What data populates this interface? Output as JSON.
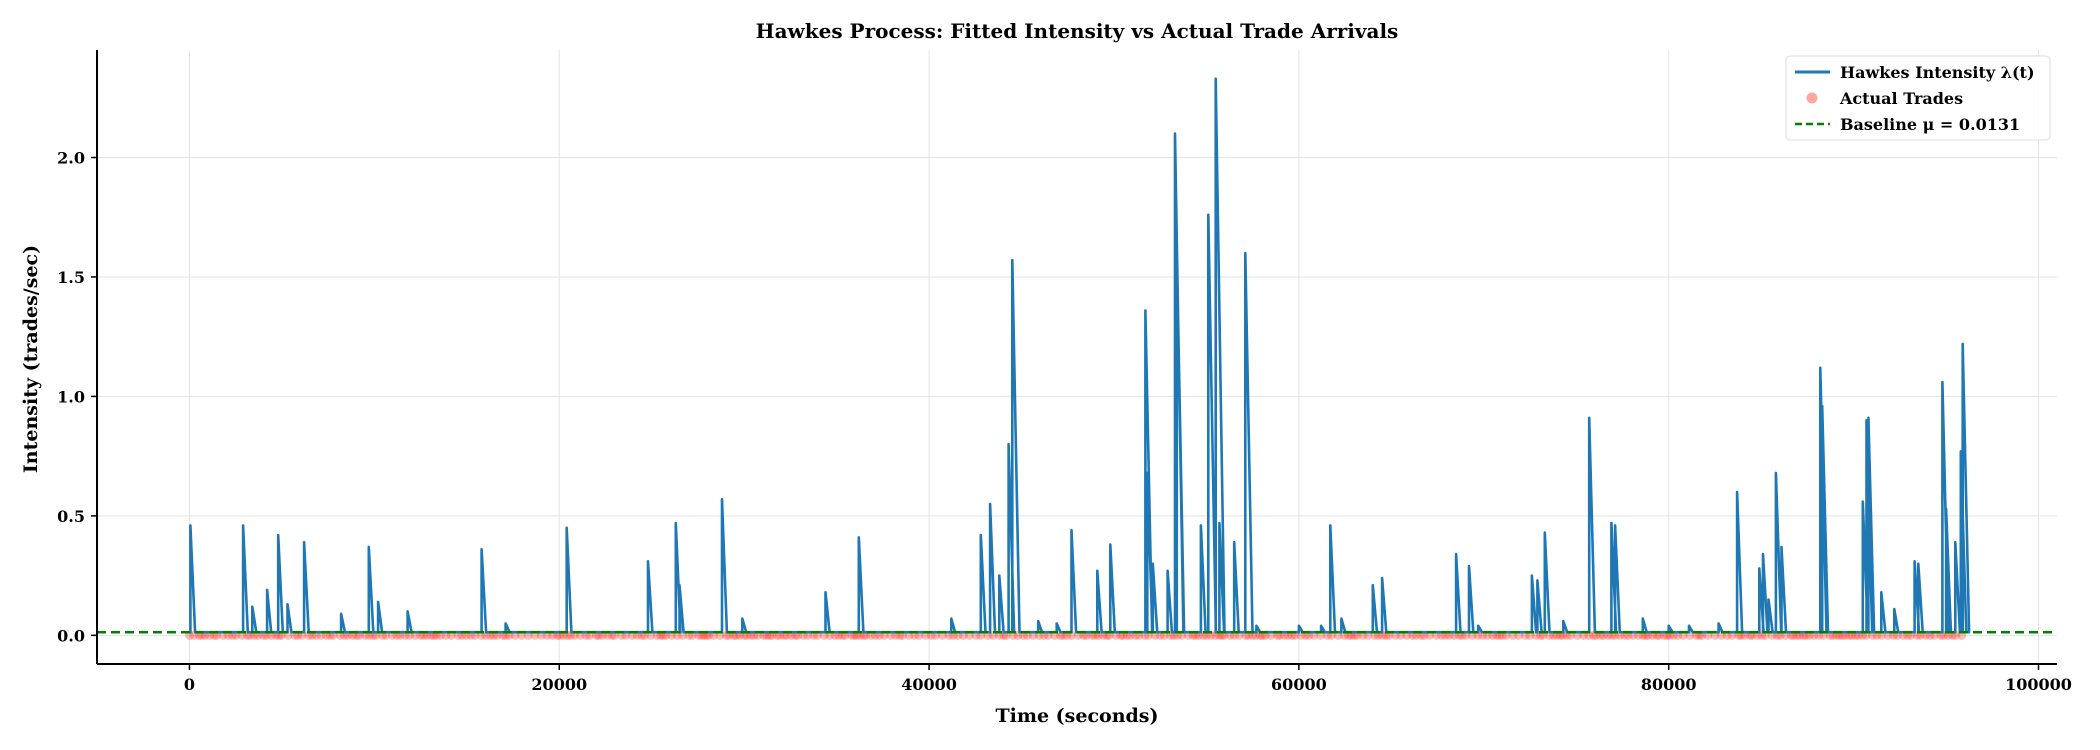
{
  "chart_data": {
    "type": "line",
    "title": "Hawkes Process: Fitted Intensity vs Actual Trade Arrivals",
    "xlabel": "Time (seconds)",
    "ylabel": "Intensity (trades/sec)",
    "xlim": [
      -5000,
      101000
    ],
    "ylim": [
      -0.12,
      2.45
    ],
    "xticks": [
      0,
      20000,
      40000,
      60000,
      80000,
      100000
    ],
    "xtick_labels": [
      "0",
      "20000",
      "40000",
      "60000",
      "80000",
      "100000"
    ],
    "yticks": [
      0.0,
      0.5,
      1.0,
      1.5,
      2.0
    ],
    "ytick_labels": [
      "0.0",
      "0.5",
      "1.0",
      "1.5",
      "2.0"
    ],
    "grid": true,
    "legend_position": "upper right",
    "colors": {
      "intensity": "#1f77b4",
      "trades": "#ff3b30",
      "baseline": "#008000"
    },
    "series": [
      {
        "name": "Hawkes Intensity λ(t)",
        "kind": "spikes",
        "spikes": [
          [
            50,
            0.46
          ],
          [
            2900,
            0.46
          ],
          [
            3400,
            0.12
          ],
          [
            4200,
            0.19
          ],
          [
            4800,
            0.42
          ],
          [
            5300,
            0.13
          ],
          [
            6200,
            0.39
          ],
          [
            8200,
            0.09
          ],
          [
            9700,
            0.37
          ],
          [
            10200,
            0.14
          ],
          [
            11800,
            0.1
          ],
          [
            15800,
            0.36
          ],
          [
            17100,
            0.05
          ],
          [
            20400,
            0.45
          ],
          [
            24800,
            0.31
          ],
          [
            26300,
            0.47
          ],
          [
            26500,
            0.21
          ],
          [
            28800,
            0.57
          ],
          [
            29900,
            0.07
          ],
          [
            34400,
            0.18
          ],
          [
            36200,
            0.41
          ],
          [
            41200,
            0.07
          ],
          [
            42800,
            0.42
          ],
          [
            43300,
            0.55
          ],
          [
            43800,
            0.25
          ],
          [
            44300,
            0.8
          ],
          [
            44500,
            1.57
          ],
          [
            45900,
            0.06
          ],
          [
            46900,
            0.05
          ],
          [
            47700,
            0.44
          ],
          [
            49100,
            0.27
          ],
          [
            49800,
            0.38
          ],
          [
            51700,
            1.36
          ],
          [
            51800,
            0.68
          ],
          [
            52100,
            0.3
          ],
          [
            52900,
            0.27
          ],
          [
            53300,
            2.1
          ],
          [
            53400,
            1.6
          ],
          [
            54700,
            0.46
          ],
          [
            55100,
            1.76
          ],
          [
            55500,
            2.33
          ],
          [
            55700,
            0.47
          ],
          [
            56500,
            0.39
          ],
          [
            57100,
            1.6
          ],
          [
            57700,
            0.04
          ],
          [
            60000,
            0.04
          ],
          [
            61200,
            0.04
          ],
          [
            61700,
            0.46
          ],
          [
            62300,
            0.07
          ],
          [
            64000,
            0.21
          ],
          [
            64500,
            0.24
          ],
          [
            68500,
            0.34
          ],
          [
            69200,
            0.29
          ],
          [
            69700,
            0.04
          ],
          [
            72600,
            0.25
          ],
          [
            72900,
            0.23
          ],
          [
            73300,
            0.43
          ],
          [
            74300,
            0.06
          ],
          [
            75700,
            0.91
          ],
          [
            76900,
            0.47
          ],
          [
            77100,
            0.46
          ],
          [
            78600,
            0.07
          ],
          [
            80000,
            0.04
          ],
          [
            81100,
            0.04
          ],
          [
            82700,
            0.05
          ],
          [
            83700,
            0.6
          ],
          [
            84900,
            0.28
          ],
          [
            85100,
            0.34
          ],
          [
            85400,
            0.15
          ],
          [
            85800,
            0.68
          ],
          [
            86100,
            0.37
          ],
          [
            88200,
            1.12
          ],
          [
            88300,
            0.96
          ],
          [
            90500,
            0.56
          ],
          [
            90700,
            0.9
          ],
          [
            90800,
            0.91
          ],
          [
            91500,
            0.18
          ],
          [
            92200,
            0.11
          ],
          [
            93300,
            0.31
          ],
          [
            93500,
            0.3
          ],
          [
            94800,
            1.06
          ],
          [
            95000,
            0.53
          ],
          [
            95500,
            0.39
          ],
          [
            95800,
            0.77
          ],
          [
            95900,
            1.22
          ]
        ]
      },
      {
        "name": "Actual Trades",
        "kind": "scatter",
        "y": 0.0,
        "x_range": [
          0,
          96000
        ]
      },
      {
        "name": "Baseline μ = 0.0131",
        "kind": "hline",
        "y": 0.0131
      }
    ]
  }
}
